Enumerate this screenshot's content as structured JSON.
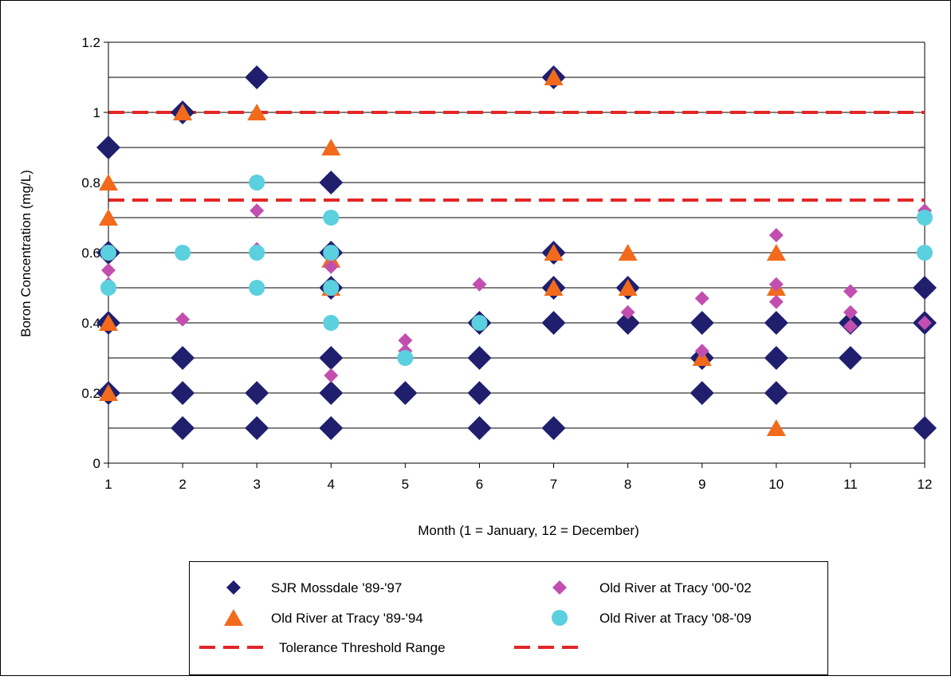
{
  "chart_data": {
    "type": "scatter",
    "title": "",
    "xlabel": "Month (1 = January, 12 = December)",
    "ylabel": "Boron Concentration (mg/L)",
    "xlim": [
      1,
      12
    ],
    "ylim": [
      0,
      1.2
    ],
    "x_ticks": [
      "1",
      "2",
      "3",
      "4",
      "5",
      "6",
      "7",
      "8",
      "9",
      "10",
      "11",
      "12"
    ],
    "y_ticks": [
      "0",
      "0.2",
      "0.4",
      "0.6",
      "0.8",
      "1",
      "1.2"
    ],
    "grid": "horizontal",
    "legend_position": "bottom",
    "series": [
      {
        "name": "SJR Mossdale '89-'97",
        "marker": "diamond",
        "color": "#1f1f6e",
        "points": [
          [
            1,
            0.9
          ],
          [
            1,
            0.6
          ],
          [
            1,
            0.4
          ],
          [
            1,
            0.2
          ],
          [
            2,
            1.0
          ],
          [
            2,
            0.3
          ],
          [
            2,
            0.2
          ],
          [
            2,
            0.1
          ],
          [
            3,
            1.1
          ],
          [
            3,
            0.2
          ],
          [
            3,
            0.1
          ],
          [
            4,
            0.8
          ],
          [
            4,
            0.6
          ],
          [
            4,
            0.5
          ],
          [
            4,
            0.3
          ],
          [
            4,
            0.2
          ],
          [
            4,
            0.1
          ],
          [
            5,
            0.2
          ],
          [
            6,
            0.4
          ],
          [
            6,
            0.3
          ],
          [
            6,
            0.2
          ],
          [
            6,
            0.1
          ],
          [
            7,
            1.1
          ],
          [
            7,
            0.6
          ],
          [
            7,
            0.5
          ],
          [
            7,
            0.4
          ],
          [
            7,
            0.1
          ],
          [
            8,
            0.5
          ],
          [
            8,
            0.4
          ],
          [
            9,
            0.4
          ],
          [
            9,
            0.3
          ],
          [
            9,
            0.2
          ],
          [
            10,
            0.4
          ],
          [
            10,
            0.3
          ],
          [
            10,
            0.2
          ],
          [
            11,
            0.4
          ],
          [
            11,
            0.3
          ],
          [
            12,
            0.5
          ],
          [
            12,
            0.4
          ],
          [
            12,
            0.1
          ]
        ]
      },
      {
        "name": "Old River at Tracy '89-'94",
        "marker": "triangle",
        "color": "#f26a1b",
        "points": [
          [
            1,
            0.8
          ],
          [
            1,
            0.7
          ],
          [
            1,
            0.4
          ],
          [
            1,
            0.2
          ],
          [
            2,
            1.0
          ],
          [
            3,
            1.0
          ],
          [
            4,
            0.9
          ],
          [
            4,
            0.58
          ],
          [
            4,
            0.5
          ],
          [
            7,
            1.1
          ],
          [
            7,
            0.6
          ],
          [
            7,
            0.5
          ],
          [
            8,
            0.6
          ],
          [
            8,
            0.5
          ],
          [
            9,
            0.3
          ],
          [
            10,
            0.6
          ],
          [
            10,
            0.5
          ],
          [
            10,
            0.1
          ]
        ]
      },
      {
        "name": "Old River at Tracy '00-'02",
        "marker": "diamond-small",
        "color": "#c24fb0",
        "points": [
          [
            1,
            0.55
          ],
          [
            1,
            0.51
          ],
          [
            2,
            0.41
          ],
          [
            3,
            0.72
          ],
          [
            3,
            0.61
          ],
          [
            4,
            0.56
          ],
          [
            4,
            0.25
          ],
          [
            5,
            0.35
          ],
          [
            5,
            0.32
          ],
          [
            6,
            0.51
          ],
          [
            8,
            0.43
          ],
          [
            9,
            0.47
          ],
          [
            9,
            0.32
          ],
          [
            10,
            0.65
          ],
          [
            10,
            0.51
          ],
          [
            10,
            0.46
          ],
          [
            11,
            0.49
          ],
          [
            11,
            0.43
          ],
          [
            11,
            0.39
          ],
          [
            12,
            0.72
          ],
          [
            12,
            0.4
          ]
        ]
      },
      {
        "name": "Old River at Tracy '08-'09",
        "marker": "circle",
        "color": "#5bd0df",
        "points": [
          [
            1,
            0.6
          ],
          [
            1,
            0.5
          ],
          [
            2,
            0.6
          ],
          [
            3,
            0.8
          ],
          [
            3,
            0.6
          ],
          [
            3,
            0.5
          ],
          [
            4,
            0.7
          ],
          [
            4,
            0.6
          ],
          [
            4,
            0.5
          ],
          [
            4,
            0.4
          ],
          [
            5,
            0.3
          ],
          [
            6,
            0.4
          ],
          [
            12,
            0.7
          ],
          [
            12,
            0.6
          ]
        ]
      }
    ],
    "threshold": {
      "name": "Tolerance Threshold Range",
      "color": "#e32626",
      "style": "dashed",
      "values": [
        1.0,
        0.75
      ]
    }
  }
}
